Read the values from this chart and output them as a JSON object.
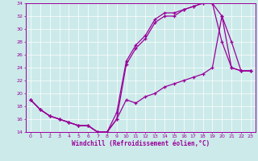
{
  "xlabel": "Windchill (Refroidissement éolien,°C)",
  "bg_color": "#cceaea",
  "line_color": "#990099",
  "xlim": [
    -0.5,
    23.5
  ],
  "ylim": [
    14,
    34
  ],
  "xticks": [
    0,
    1,
    2,
    3,
    4,
    5,
    6,
    7,
    8,
    9,
    10,
    11,
    12,
    13,
    14,
    15,
    16,
    17,
    18,
    19,
    20,
    21,
    22,
    23
  ],
  "yticks": [
    14,
    16,
    18,
    20,
    22,
    24,
    26,
    28,
    30,
    32,
    34
  ],
  "line1_x": [
    0,
    1,
    2,
    3,
    4,
    5,
    6,
    7,
    8,
    9,
    10,
    11,
    12,
    13,
    14,
    15,
    16,
    17,
    18,
    19,
    20,
    21,
    22,
    23
  ],
  "line1_y": [
    19,
    17.5,
    16.5,
    16,
    15.5,
    15,
    15,
    14,
    14,
    16,
    19,
    18.5,
    19.5,
    20,
    21,
    21.5,
    22,
    22.5,
    23,
    24,
    32,
    24,
    23.5,
    23.5
  ],
  "line2_x": [
    0,
    1,
    2,
    3,
    4,
    5,
    6,
    7,
    8,
    9,
    10,
    11,
    12,
    13,
    14,
    15,
    16,
    17,
    18,
    19,
    20,
    21,
    22,
    23
  ],
  "line2_y": [
    19,
    17.5,
    16.5,
    16,
    15.5,
    15,
    15,
    14,
    14,
    16,
    24.5,
    27,
    28.5,
    31,
    32,
    32,
    33,
    33.5,
    34,
    34,
    28,
    24,
    23.5,
    23.5
  ],
  "line3_x": [
    0,
    1,
    2,
    3,
    4,
    5,
    6,
    7,
    8,
    9,
    10,
    11,
    12,
    13,
    14,
    15,
    16,
    17,
    18,
    19,
    20,
    21,
    22,
    23
  ],
  "line3_y": [
    19,
    17.5,
    16.5,
    16,
    15.5,
    15,
    15,
    14,
    14,
    17,
    25,
    27.5,
    29,
    31.5,
    32.5,
    32.5,
    33,
    33.5,
    34,
    34,
    32,
    28,
    23.5,
    23.5
  ]
}
